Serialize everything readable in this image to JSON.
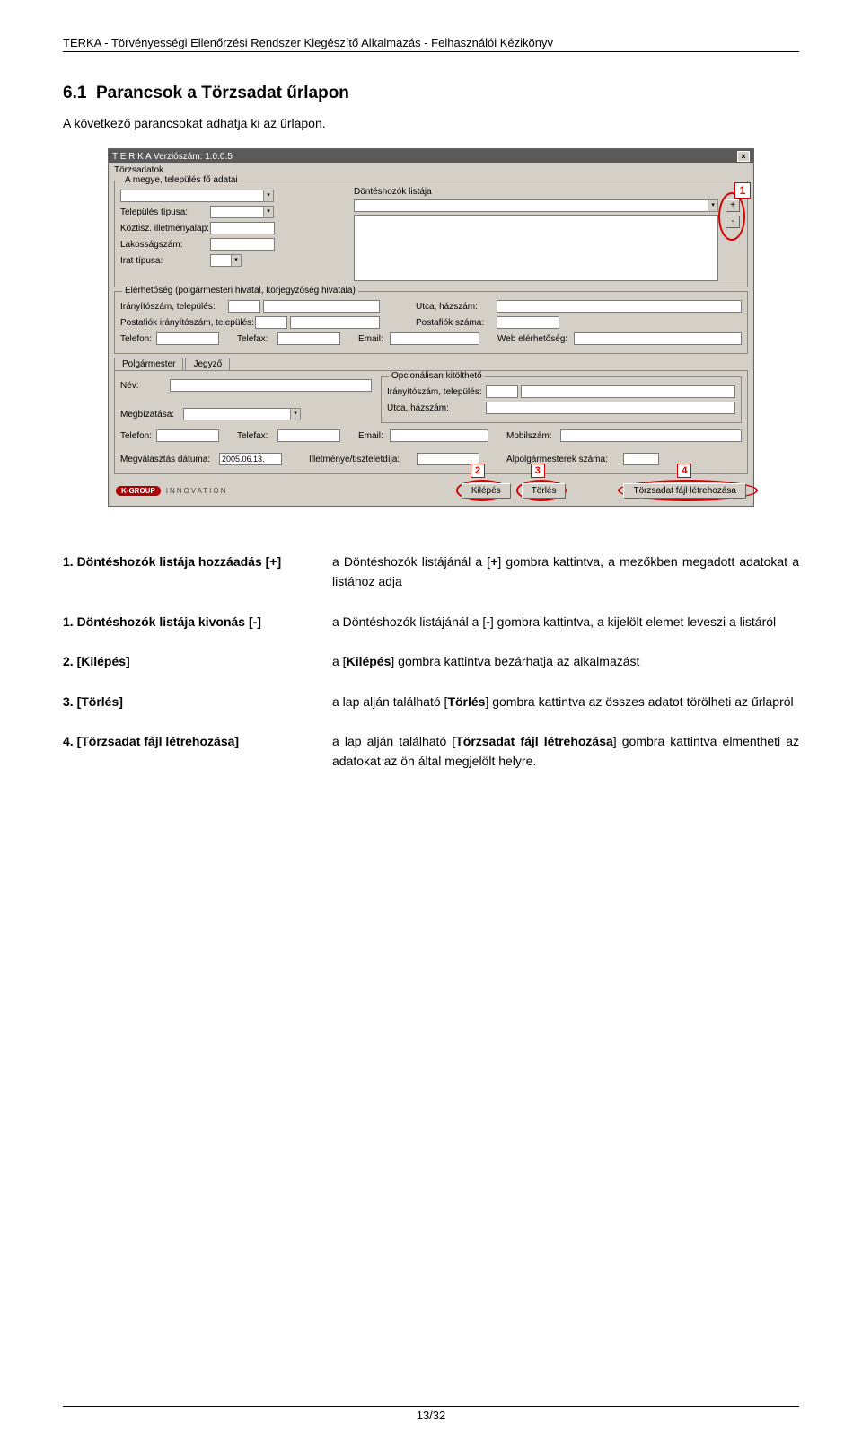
{
  "header": {
    "title": "TERKA - Törvényességi Ellenőrzési Rendszer Kiegészítő Alkalmazás - Felhasználói Kézikönyv"
  },
  "section": {
    "number": "6.1",
    "title": "Parancsok a Törzsadat űrlapon",
    "intro": "A következő parancsokat adhatja ki az űrlapon."
  },
  "screenshot": {
    "titlebar": "T E R K A   Verziószám: 1.0.0.5",
    "close_x": "×",
    "menu": "Törzsadatok",
    "group_main": "A megye, település fő adatai",
    "label_telepules_tipusa": "Település típusa:",
    "label_koztisz": "Köztisz. illetményalap:",
    "label_lakossag": "Lakosságszám:",
    "label_irat": "Irat típusa:",
    "label_donteshozok": "Döntéshozók listája",
    "plus": "+",
    "minus": "-",
    "callout1": "1",
    "group_elerheto": "Elérhetőség (polgármesteri hivatal, körjegyzőség hivatala)",
    "label_irszam1": "Irányítószám, település:",
    "label_utca1": "Utca, házszám:",
    "label_posta1": "Postafiók irányítószám, település:",
    "label_posta_sz": "Postafiók száma:",
    "label_tel": "Telefon:",
    "label_fax": "Telefax:",
    "label_email": "Email:",
    "label_web": "Web elérhetőség:",
    "tab1": "Polgármester",
    "tab2": "Jegyző",
    "label_nev": "Név:",
    "group_opt": "Opcionálisan kitölthető",
    "label_irszam2": "Irányítószám, település:",
    "label_utca2": "Utca, házszám:",
    "label_megbiz": "Megbízatása:",
    "label_mobil": "Mobilszám:",
    "label_megval": "Megválasztás dátuma:",
    "date_val": "2005.06.13.",
    "label_illetmeny": "Illetménye/tiszteletdíja:",
    "label_alpolg": "Alpolgármesterek száma:",
    "logo_text": "K-GROUP",
    "logo_innov": "INNOVATION",
    "btn_kilepes": "Kilépés",
    "btn_torles": "Törlés",
    "btn_letrehoz": "Törzsadat fájl létrehozása",
    "callout2": "2",
    "callout3": "3",
    "callout4": "4"
  },
  "commands": [
    {
      "label": "1. Döntéshozók listája hozzáadás [+]",
      "desc": "a Döntéshozók listájánál a [<b>+</b>] gombra kattintva, a mezőkben megadott adatokat a listához adja"
    },
    {
      "label": "1. Döntéshozók listája kivonás [-]",
      "desc": "a Döntéshozók listájánál a [<b>-</b>] gombra kattintva, a kijelölt elemet leveszi a listáról"
    },
    {
      "label": "2. [Kilépés]",
      "desc": "a [<b>Kilépés</b>] gombra kattintva bezárhatja az alkalmazást"
    },
    {
      "label": "3. [Törlés]",
      "desc": "a lap alján található [<b>Törlés</b>] gombra kattintva az összes adatot törölheti az űrlapról"
    },
    {
      "label": "4. [Törzsadat fájl létrehozása]",
      "desc": "a lap alján található [<b>Törzsadat fájl létrehozása</b>] gombra kattintva elmentheti az adatokat az ön által megjelölt helyre."
    }
  ],
  "footer": {
    "page": "13/32"
  }
}
